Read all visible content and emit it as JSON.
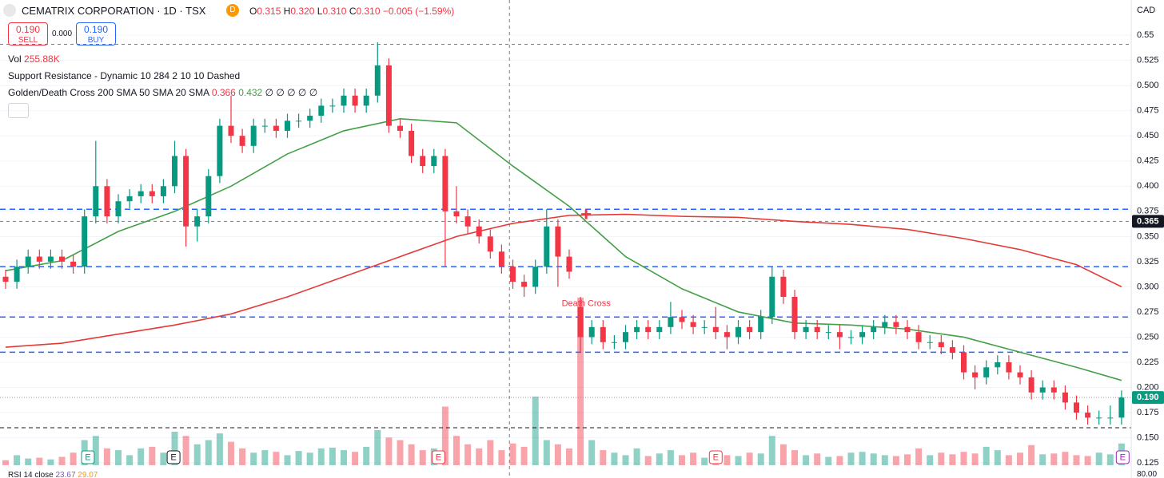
{
  "header": {
    "title": "CEMATRIX CORPORATION · 1D · TSX",
    "badge": "D",
    "o_key": "O",
    "o": "0.315",
    "h_key": "H",
    "h": "0.320",
    "l_key": "L",
    "l": "0.310",
    "c_key": "C",
    "c": "0.310",
    "change": "−0.005 (−1.59%)",
    "currency": "CAD"
  },
  "trade": {
    "sell_price": "0.190",
    "sell": "SELL",
    "spread": "0.000",
    "buy_price": "0.190",
    "buy": "BUY"
  },
  "legend": {
    "vol_key": "Vol",
    "vol": "255.88K",
    "support": "Support Resistance - Dynamic 10 284 2 10 10 Dashed",
    "cross": "Golden/Death Cross 200 SMA 50 SMA 20 SMA",
    "cross_v1": "0.366",
    "cross_v2": "0.432",
    "cross_rest": "∅ ∅ ∅ ∅ ∅"
  },
  "rsi": {
    "title": "RSI 14 close",
    "v1": "23.67",
    "v2": "29.07",
    "top": "80.00"
  },
  "chart_data": {
    "type": "candlestick",
    "up_color": "#089981",
    "down_color": "#f23645",
    "ylim": [
      0.11,
      0.585
    ],
    "yticks": [
      0.55,
      0.525,
      {
        "value": 0.5,
        "label": "0.500"
      },
      0.475,
      {
        "value": 0.45,
        "label": "0.450"
      },
      0.425,
      {
        "value": 0.4,
        "label": "0.400"
      },
      0.375,
      {
        "value": 0.35,
        "label": "0.350"
      },
      0.325,
      {
        "value": 0.3,
        "label": "0.300"
      },
      0.275,
      {
        "value": 0.25,
        "label": "0.250"
      },
      0.225,
      {
        "value": 0.2,
        "label": "0.200"
      },
      0.175,
      {
        "value": 0.15,
        "label": "0.150"
      },
      0.125
    ],
    "grid": true,
    "ohlc": [
      [
        0.31,
        0.317,
        0.298,
        0.305
      ],
      [
        0.305,
        0.327,
        0.298,
        0.32
      ],
      [
        0.32,
        0.337,
        0.313,
        0.33
      ],
      [
        0.33,
        0.337,
        0.318,
        0.325
      ],
      [
        0.325,
        0.337,
        0.318,
        0.33
      ],
      [
        0.33,
        0.337,
        0.318,
        0.325
      ],
      [
        0.325,
        0.332,
        0.313,
        0.32
      ],
      [
        0.32,
        0.377,
        0.313,
        0.37
      ],
      [
        0.37,
        0.445,
        0.363,
        0.4
      ],
      [
        0.4,
        0.407,
        0.363,
        0.37
      ],
      [
        0.37,
        0.392,
        0.363,
        0.385
      ],
      [
        0.385,
        0.397,
        0.378,
        0.39
      ],
      [
        0.39,
        0.402,
        0.383,
        0.395
      ],
      [
        0.395,
        0.402,
        0.383,
        0.39
      ],
      [
        0.39,
        0.407,
        0.383,
        0.4
      ],
      [
        0.4,
        0.445,
        0.393,
        0.43
      ],
      [
        0.43,
        0.437,
        0.34,
        0.36
      ],
      [
        0.36,
        0.377,
        0.345,
        0.37
      ],
      [
        0.37,
        0.417,
        0.363,
        0.41
      ],
      [
        0.41,
        0.467,
        0.403,
        0.46
      ],
      [
        0.46,
        0.49,
        0.443,
        0.45
      ],
      [
        0.45,
        0.457,
        0.433,
        0.44
      ],
      [
        0.44,
        0.467,
        0.433,
        0.46
      ],
      [
        0.46,
        0.467,
        0.453,
        0.46
      ],
      [
        0.46,
        0.467,
        0.448,
        0.455
      ],
      [
        0.455,
        0.472,
        0.448,
        0.465
      ],
      [
        0.465,
        0.472,
        0.458,
        0.465
      ],
      [
        0.465,
        0.477,
        0.458,
        0.47
      ],
      [
        0.47,
        0.487,
        0.463,
        0.48
      ],
      [
        0.48,
        0.487,
        0.473,
        0.48
      ],
      [
        0.48,
        0.497,
        0.473,
        0.49
      ],
      [
        0.49,
        0.497,
        0.473,
        0.48
      ],
      [
        0.48,
        0.497,
        0.473,
        0.49
      ],
      [
        0.49,
        0.543,
        0.483,
        0.52
      ],
      [
        0.52,
        0.527,
        0.453,
        0.46
      ],
      [
        0.46,
        0.467,
        0.448,
        0.455
      ],
      [
        0.455,
        0.462,
        0.423,
        0.43
      ],
      [
        0.43,
        0.437,
        0.413,
        0.42
      ],
      [
        0.42,
        0.437,
        0.413,
        0.43
      ],
      [
        0.43,
        0.437,
        0.32,
        0.375
      ],
      [
        0.375,
        0.4,
        0.363,
        0.37
      ],
      [
        0.37,
        0.377,
        0.353,
        0.36
      ],
      [
        0.36,
        0.367,
        0.343,
        0.35
      ],
      [
        0.35,
        0.357,
        0.328,
        0.335
      ],
      [
        0.335,
        0.342,
        0.313,
        0.32
      ],
      [
        0.32,
        0.327,
        0.298,
        0.305
      ],
      [
        0.305,
        0.312,
        0.29,
        0.3
      ],
      [
        0.3,
        0.327,
        0.293,
        0.32
      ],
      [
        0.32,
        0.377,
        0.313,
        0.36
      ],
      [
        0.36,
        0.367,
        0.3,
        0.33
      ],
      [
        0.33,
        0.337,
        0.308,
        0.315
      ],
      [
        0.28,
        0.29,
        0.235,
        0.25
      ],
      [
        0.25,
        0.267,
        0.243,
        0.26
      ],
      [
        0.26,
        0.267,
        0.238,
        0.245
      ],
      [
        0.245,
        0.252,
        0.238,
        0.245
      ],
      [
        0.245,
        0.262,
        0.238,
        0.255
      ],
      [
        0.255,
        0.267,
        0.248,
        0.26
      ],
      [
        0.26,
        0.267,
        0.248,
        0.255
      ],
      [
        0.255,
        0.267,
        0.248,
        0.26
      ],
      [
        0.26,
        0.285,
        0.253,
        0.27
      ],
      [
        0.27,
        0.277,
        0.258,
        0.265
      ],
      [
        0.265,
        0.272,
        0.253,
        0.26
      ],
      [
        0.26,
        0.267,
        0.253,
        0.26
      ],
      [
        0.26,
        0.28,
        0.248,
        0.255
      ],
      [
        0.255,
        0.262,
        0.238,
        0.25
      ],
      [
        0.25,
        0.267,
        0.243,
        0.26
      ],
      [
        0.26,
        0.267,
        0.248,
        0.255
      ],
      [
        0.255,
        0.277,
        0.248,
        0.27
      ],
      [
        0.27,
        0.32,
        0.263,
        0.31
      ],
      [
        0.31,
        0.317,
        0.283,
        0.29
      ],
      [
        0.29,
        0.297,
        0.248,
        0.255
      ],
      [
        0.255,
        0.267,
        0.248,
        0.26
      ],
      [
        0.26,
        0.267,
        0.248,
        0.255
      ],
      [
        0.255,
        0.262,
        0.248,
        0.255
      ],
      [
        0.255,
        0.262,
        0.238,
        0.25
      ],
      [
        0.25,
        0.257,
        0.243,
        0.25
      ],
      [
        0.25,
        0.262,
        0.243,
        0.255
      ],
      [
        0.255,
        0.267,
        0.248,
        0.26
      ],
      [
        0.26,
        0.272,
        0.253,
        0.265
      ],
      [
        0.265,
        0.272,
        0.253,
        0.26
      ],
      [
        0.26,
        0.267,
        0.248,
        0.255
      ],
      [
        0.255,
        0.262,
        0.238,
        0.245
      ],
      [
        0.245,
        0.252,
        0.238,
        0.245
      ],
      [
        0.245,
        0.252,
        0.233,
        0.24
      ],
      [
        0.24,
        0.247,
        0.228,
        0.235
      ],
      [
        0.235,
        0.242,
        0.208,
        0.215
      ],
      [
        0.215,
        0.222,
        0.198,
        0.21
      ],
      [
        0.21,
        0.227,
        0.203,
        0.22
      ],
      [
        0.22,
        0.232,
        0.213,
        0.225
      ],
      [
        0.225,
        0.232,
        0.208,
        0.215
      ],
      [
        0.215,
        0.222,
        0.203,
        0.21
      ],
      [
        0.21,
        0.217,
        0.188,
        0.195
      ],
      [
        0.195,
        0.207,
        0.188,
        0.2
      ],
      [
        0.2,
        0.207,
        0.188,
        0.195
      ],
      [
        0.195,
        0.202,
        0.178,
        0.185
      ],
      [
        0.185,
        0.192,
        0.168,
        0.175
      ],
      [
        0.175,
        0.182,
        0.163,
        0.17
      ],
      [
        0.17,
        0.177,
        0.163,
        0.17
      ],
      [
        0.17,
        0.182,
        0.163,
        0.17
      ],
      [
        0.17,
        0.197,
        0.163,
        0.19
      ]
    ],
    "volumes": [
      60,
      120,
      80,
      90,
      70,
      100,
      150,
      300,
      350,
      200,
      180,
      120,
      200,
      220,
      150,
      400,
      350,
      250,
      300,
      380,
      280,
      200,
      150,
      180,
      160,
      120,
      170,
      150,
      200,
      210,
      180,
      160,
      220,
      420,
      330,
      300,
      250,
      180,
      200,
      700,
      350,
      250,
      200,
      300,
      180,
      260,
      220,
      820,
      300,
      250,
      200,
      2000,
      300,
      180,
      150,
      120,
      200,
      110,
      140,
      180,
      120,
      150,
      90,
      160,
      120,
      110,
      150,
      140,
      350,
      250,
      180,
      120,
      140,
      100,
      110,
      150,
      160,
      140,
      120,
      110,
      130,
      200,
      120,
      150,
      130,
      160,
      140,
      220,
      180,
      120,
      150,
      240,
      130,
      140,
      160,
      120,
      110,
      150,
      130,
      260
    ],
    "lines": [
      {
        "color": "#43a047",
        "x": [
          0,
          5,
          10,
          15,
          20,
          25,
          30,
          35,
          40,
          45,
          50,
          55,
          60,
          65,
          70,
          75,
          80,
          85,
          90,
          95,
          99
        ],
        "values": [
          0.316,
          0.326,
          0.355,
          0.375,
          0.4,
          0.432,
          0.455,
          0.467,
          0.463,
          0.42,
          0.38,
          0.33,
          0.298,
          0.275,
          0.264,
          0.262,
          0.258,
          0.25,
          0.235,
          0.22,
          0.207
        ]
      },
      {
        "color": "#e53935",
        "x": [
          0,
          5,
          10,
          15,
          20,
          25,
          30,
          35,
          40,
          45,
          50,
          55,
          60,
          65,
          70,
          75,
          80,
          85,
          90,
          95,
          99
        ],
        "values": [
          0.24,
          0.244,
          0.253,
          0.262,
          0.273,
          0.29,
          0.31,
          0.33,
          0.35,
          0.363,
          0.371,
          0.372,
          0.37,
          0.369,
          0.365,
          0.362,
          0.357,
          0.348,
          0.337,
          0.322,
          0.3
        ]
      }
    ],
    "levels": [
      {
        "value": 0.541,
        "color": "#787b86",
        "dash": "4 4"
      },
      {
        "value": 0.377,
        "color": "#2962ff",
        "dash": "7 5"
      },
      {
        "value": 0.32,
        "color": "#2962ff",
        "dash": "7 5"
      },
      {
        "value": 0.27,
        "color": "#2962ff",
        "dash": "7 5"
      },
      {
        "value": 0.235,
        "color": "#2962ff",
        "dash": "7 5"
      },
      {
        "value": 0.19,
        "color": "#9598a1",
        "dash": "1 2"
      },
      {
        "value": 0.16,
        "color": "#131722",
        "dash": "5 4"
      }
    ],
    "crosshair": {
      "x": 44.7,
      "y": 0.365
    },
    "price_labels": [
      {
        "value": 0.365,
        "color": "#131722"
      },
      {
        "value": 0.19,
        "label": "0.190",
        "color": "#089981"
      }
    ],
    "annotation": {
      "text": "Death Cross",
      "x": 51.5,
      "y": 0.372,
      "color": "#f23645"
    },
    "events": [
      {
        "x": 7.3,
        "label": "E",
        "color": "#089981"
      },
      {
        "x": 14.9,
        "label": "E",
        "color": "#131722"
      },
      {
        "x": 38.4,
        "label": "E",
        "color": "#f23645"
      },
      {
        "x": 63,
        "label": "E",
        "color": "#f23645"
      },
      {
        "x": 99.1,
        "label": "E",
        "color": "#9c27b0"
      }
    ]
  }
}
